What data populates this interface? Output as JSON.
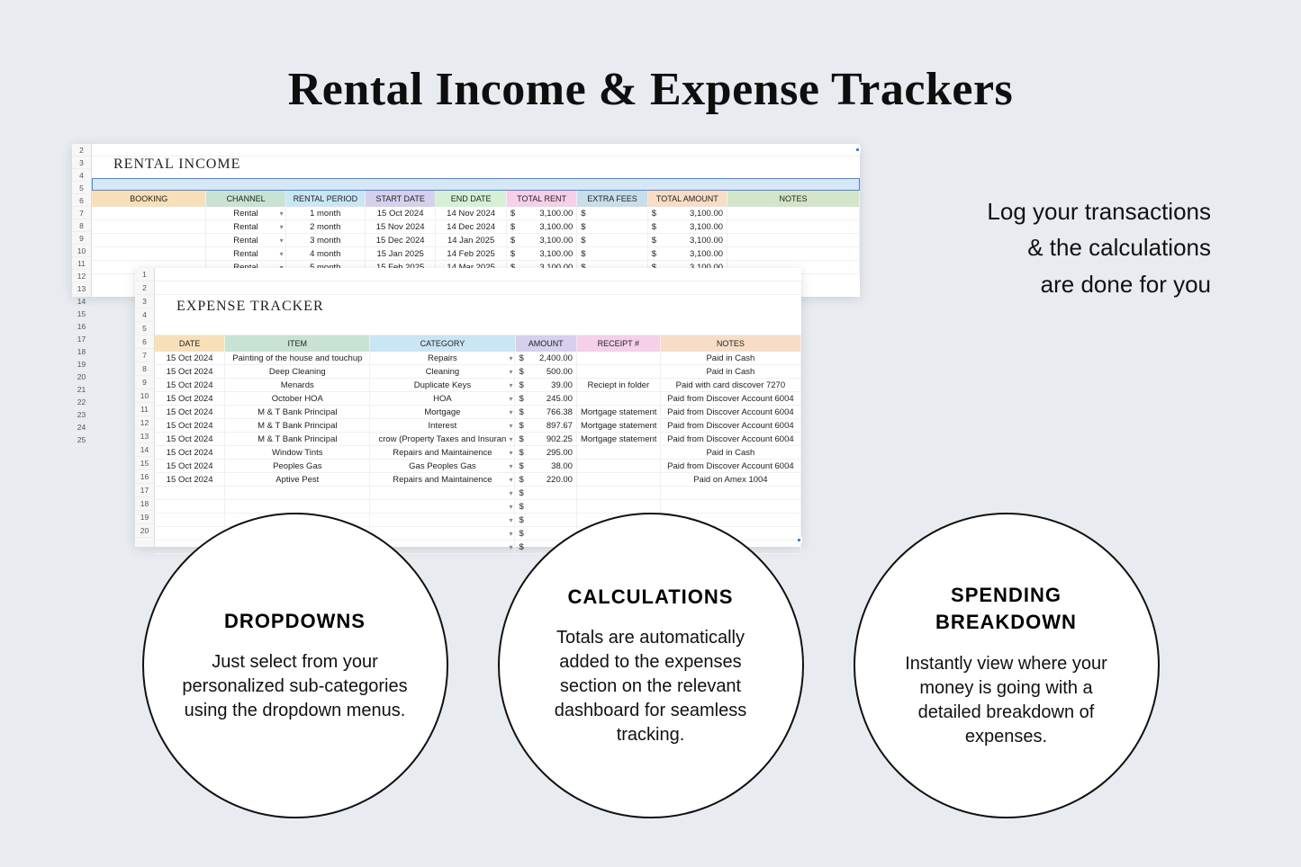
{
  "title": "Rental Income & Expense Trackers",
  "tagline_l1": "Log your transactions",
  "tagline_l2": "& the calculations",
  "tagline_l3": "are done for you",
  "income": {
    "title": "RENTAL INCOME",
    "rownums": [
      "2",
      "3",
      "4",
      "5",
      "6",
      "7",
      "8",
      "9",
      "10",
      "11",
      "12",
      "13",
      "14",
      "15",
      "16",
      "17",
      "18",
      "19",
      "20",
      "21",
      "22",
      "23",
      "24",
      "25"
    ],
    "headers": {
      "booking": "BOOKING",
      "channel": "CHANNEL",
      "period": "RENTAL PERIOD",
      "start": "START DATE",
      "end": "END DATE",
      "totalrent": "TOTAL RENT",
      "extra": "EXTRA FEES",
      "totalamt": "TOTAL AMOUNT",
      "notes": "NOTES"
    },
    "rows": [
      {
        "channel": "Rental",
        "period": "1 month",
        "start": "15 Oct 2024",
        "end": "14 Nov 2024",
        "rent": "3,100.00",
        "extra": "",
        "total": "3,100.00"
      },
      {
        "channel": "Rental",
        "period": "2 month",
        "start": "15 Nov 2024",
        "end": "14 Dec 2024",
        "rent": "3,100.00",
        "extra": "",
        "total": "3,100.00"
      },
      {
        "channel": "Rental",
        "period": "3 month",
        "start": "15 Dec 2024",
        "end": "14 Jan 2025",
        "rent": "3,100.00",
        "extra": "",
        "total": "3,100.00"
      },
      {
        "channel": "Rental",
        "period": "4 month",
        "start": "15 Jan 2025",
        "end": "14 Feb 2025",
        "rent": "3,100.00",
        "extra": "",
        "total": "3,100.00"
      },
      {
        "channel": "Rental",
        "period": "5 month",
        "start": "15 Feb 2025",
        "end": "14 Mar 2025",
        "rent": "3,100.00",
        "extra": "",
        "total": "3,100.00"
      }
    ],
    "colors": {
      "booking": "#f7e0b8",
      "channel": "#c8e3d4",
      "period": "#c9e6f5",
      "start": "#d6d0ee",
      "end": "#d6f0d6",
      "totalrent": "#f5d0e8",
      "extra": "#c8deea",
      "totalamt": "#f7ddc6",
      "notes": "#d3e5c9"
    }
  },
  "expense": {
    "title": "EXPENSE TRACKER",
    "rownums": [
      "1",
      "2",
      "3",
      "4",
      "5",
      "6",
      "7",
      "8",
      "9",
      "10",
      "11",
      "12",
      "13",
      "14",
      "15",
      "16",
      "17",
      "18",
      "19",
      "20"
    ],
    "headers": {
      "date": "DATE",
      "item": "ITEM",
      "category": "CATEGORY",
      "amount": "AMOUNT",
      "receipt": "RECEIPT #",
      "notes": "NOTES"
    },
    "rows": [
      {
        "date": "15 Oct 2024",
        "item": "Painting of the house and touchup",
        "cat": "Repairs",
        "amt": "2,400.00",
        "rec": "",
        "notes": "Paid in Cash"
      },
      {
        "date": "15 Oct 2024",
        "item": "Deep Cleaning",
        "cat": "Cleaning",
        "amt": "500.00",
        "rec": "",
        "notes": "Paid in Cash"
      },
      {
        "date": "15 Oct 2024",
        "item": "Menards",
        "cat": "Duplicate Keys",
        "amt": "39.00",
        "rec": "Reciept in folder",
        "notes": "Paid with card discover 7270"
      },
      {
        "date": "15 Oct 2024",
        "item": "October HOA",
        "cat": "HOA",
        "amt": "245.00",
        "rec": "",
        "notes": "Paid from Discover Account 6004"
      },
      {
        "date": "15 Oct 2024",
        "item": "M & T Bank Principal",
        "cat": "Mortgage",
        "amt": "766.38",
        "rec": "Mortgage statement",
        "notes": "Paid from Discover Account 6004"
      },
      {
        "date": "15 Oct 2024",
        "item": "M & T Bank Principal",
        "cat": "Interest",
        "amt": "897.67",
        "rec": "Mortgage statement",
        "notes": "Paid from Discover Account 6004"
      },
      {
        "date": "15 Oct 2024",
        "item": "M & T Bank Principal",
        "cat": "crow (Property Taxes and Insuran",
        "amt": "902.25",
        "rec": "Mortgage statement",
        "notes": "Paid from Discover Account 6004"
      },
      {
        "date": "15 Oct 2024",
        "item": "Window Tints",
        "cat": "Repairs and Maintainence",
        "amt": "295.00",
        "rec": "",
        "notes": "Paid in Cash"
      },
      {
        "date": "15 Oct 2024",
        "item": "Peoples Gas",
        "cat": "Gas Peoples Gas",
        "amt": "38.00",
        "rec": "",
        "notes": "Paid from Discover Account 6004"
      },
      {
        "date": "15 Oct 2024",
        "item": "Aptive Pest",
        "cat": "Repairs and Maintainence",
        "amt": "220.00",
        "rec": "",
        "notes": "Paid on Amex 1004"
      }
    ],
    "colors": {
      "date": "#f7e0b8",
      "item": "#c8e3d4",
      "cat": "#c9e6f5",
      "amt": "#d6d0ee",
      "rec": "#f5d0e8",
      "notes": "#f7ddc6"
    }
  },
  "circles": [
    {
      "title": "DROPDOWNS",
      "body": "Just select from your personalized sub-categories using the dropdown menus."
    },
    {
      "title": "CALCULATIONS",
      "body": "Totals are automatically added to the expenses section on the relevant dashboard for seamless tracking."
    },
    {
      "title": "SPENDING BREAKDOWN",
      "body": "Instantly view where your money is going with a detailed breakdown of expenses."
    }
  ],
  "currency_symbol": "$"
}
